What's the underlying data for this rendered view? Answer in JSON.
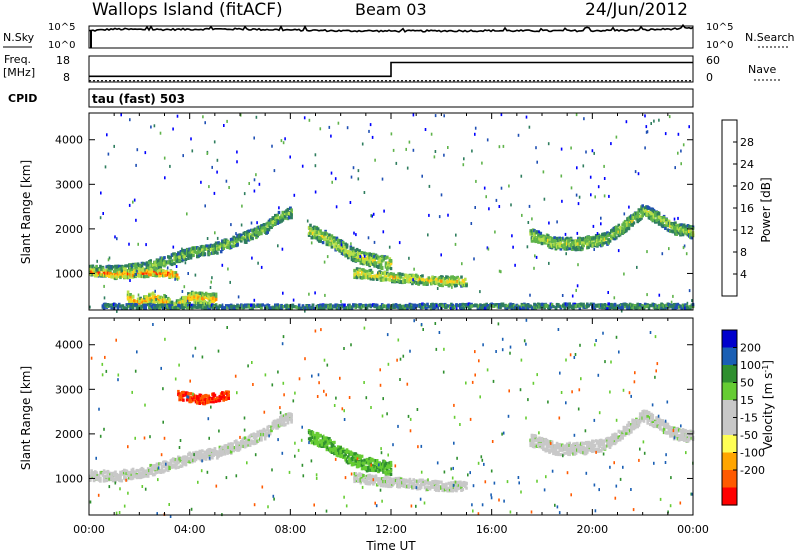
{
  "header": {
    "station": "Wallops Island (fitACF)",
    "beam": "Beam 03",
    "date": "24/Jun/2012"
  },
  "aux_labels": {
    "nsky": "N.Sky",
    "nsearch": "N.Search",
    "freq_line1": "Freq.",
    "freq_line2": "[MHz]",
    "nave": "Nave",
    "cpid": "CPID",
    "cpid_value": "tau (fast) 503",
    "left_ticks_top": [
      "10^5",
      "10^0"
    ],
    "right_ticks_top": [
      "10^5",
      "10^0"
    ],
    "left_ticks_freq": [
      "18",
      "8"
    ],
    "right_ticks_freq": [
      "60",
      "0"
    ]
  },
  "colors": {
    "power_scale": [
      "#0000ff",
      "#1f4fb4",
      "#2e7d5e",
      "#5fb34a",
      "#b7e04a",
      "#ffd21a",
      "#ff8c00",
      "#ff2a00",
      "#e00000"
    ],
    "velocity_scale": [
      "#ff0000",
      "#ff5a00",
      "#ffa500",
      "#ffff55",
      "#c8c8c8",
      "#c8c8c8",
      "#66cc33",
      "#2f8f2f",
      "#1a5fb4",
      "#0000cc"
    ],
    "ground_scatter": "#c8c8c8"
  },
  "chart_data": [
    {
      "type": "line",
      "panel": "N.Sky / N.Search",
      "description_label": "N.Sky",
      "ylim_labels": [
        "10^0",
        "10^5"
      ],
      "x_hours": [
        0,
        0.5,
        1,
        2,
        3,
        4,
        5,
        6,
        7,
        8,
        9,
        10,
        11,
        12,
        13,
        14,
        15,
        16,
        17,
        18,
        19,
        20,
        21,
        22,
        23,
        24
      ],
      "series": [
        {
          "name": "N.Sky",
          "values_level": [
            0.78,
            0.82,
            0.86,
            0.84,
            0.84,
            0.85,
            0.86,
            0.86,
            0.84,
            0.82,
            0.8,
            0.78,
            0.78,
            0.77,
            0.77,
            0.78,
            0.78,
            0.79,
            0.78,
            0.78,
            0.78,
            0.79,
            0.8,
            0.82,
            0.86,
            0.9
          ]
        }
      ]
    },
    {
      "type": "line",
      "panel": "Freq / Nave",
      "series": [
        {
          "name": "Freq.",
          "x_hours": [
            0,
            12,
            12,
            24
          ],
          "values_level": [
            0.22,
            0.22,
            0.75,
            0.75
          ]
        },
        {
          "name": "Nave",
          "x_hours": [
            0,
            24
          ],
          "values_level": [
            0.05,
            0.05
          ]
        }
      ]
    },
    {
      "type": "heatmap",
      "panel": "power",
      "xlabel": "",
      "ylabel": "Slant Range [km]",
      "x_tick_labels": [
        "00:00",
        "04:00",
        "08:00",
        "12:00",
        "16:00",
        "20:00",
        "00:00"
      ],
      "x_range_hours": [
        0,
        24
      ],
      "y_ticks": [
        1000,
        2000,
        3000,
        4000
      ],
      "ylim": [
        180,
        4600
      ],
      "colorbar": {
        "label": "Power [dB]",
        "ticks": [
          "4",
          "8",
          "12",
          "16",
          "20",
          "24",
          "28"
        ]
      },
      "echo_bands": [
        {
          "label": "range-time track 1",
          "x_hours": [
            0,
            1,
            2,
            3,
            4,
            5,
            6,
            7,
            7.5,
            8
          ],
          "range_km": [
            1100,
            1080,
            1150,
            1300,
            1500,
            1600,
            1800,
            2050,
            2300,
            2400
          ],
          "width_km": 180,
          "level": 14
        },
        {
          "label": "range-time track 2",
          "x_hours": [
            0,
            0.5,
            1,
            1.8,
            2.5,
            3,
            3.5
          ],
          "range_km": [
            1060,
            1050,
            1000,
            1030,
            1050,
            1030,
            1000
          ],
          "width_km": 120,
          "level": 26
        },
        {
          "label": "range-time track 3",
          "x_hours": [
            1.5,
            2,
            2.5,
            3,
            3.3,
            4,
            5
          ],
          "range_km": [
            500,
            350,
            500,
            400,
            250,
            500,
            450
          ],
          "width_km": 200,
          "level": 22
        },
        {
          "label": "range-time track 4",
          "x_hours": [
            8.7,
            9.5,
            10.3,
            11,
            11.5,
            12
          ],
          "range_km": [
            2000,
            1800,
            1500,
            1350,
            1300,
            1250
          ],
          "width_km": 220,
          "level": 18
        },
        {
          "label": "range-time track 5",
          "x_hours": [
            10.5,
            11.2,
            12,
            13,
            14,
            15
          ],
          "range_km": [
            1050,
            1000,
            950,
            900,
            860,
            850
          ],
          "width_km": 160,
          "level": 20
        },
        {
          "label": "range-time track 6",
          "x_hours": [
            17.5,
            18.5,
            19.5,
            20.5,
            21.5,
            22,
            22.5,
            23.2,
            24
          ],
          "range_km": [
            1900,
            1700,
            1700,
            1800,
            2200,
            2450,
            2300,
            2050,
            1950
          ],
          "width_km": 200,
          "level": 16
        },
        {
          "label": "range-time track 7",
          "x_hours": [
            0.5,
            2,
            4,
            6,
            8,
            10,
            12,
            14,
            16,
            18,
            20,
            22,
            24
          ],
          "range_km": [
            300,
            290,
            280,
            280,
            280,
            280,
            290,
            300,
            300,
            300,
            300,
            300,
            300
          ],
          "width_km": 80,
          "level": 10
        }
      ]
    },
    {
      "type": "heatmap",
      "panel": "velocity",
      "xlabel": "Time UT",
      "ylabel": "Slant Range [km]",
      "x_tick_labels": [
        "00:00",
        "04:00",
        "08:00",
        "12:00",
        "16:00",
        "20:00",
        "00:00"
      ],
      "x_range_hours": [
        0,
        24
      ],
      "y_ticks": [
        1000,
        2000,
        3000,
        4000
      ],
      "ylim": [
        180,
        4600
      ],
      "colorbar": {
        "label": "Velocity [m s^-1]",
        "ticks": [
          "200",
          "100",
          "50",
          "15",
          "-15",
          "-50",
          "-100",
          "-200"
        ]
      },
      "echo_bands": [
        {
          "label": "velocity track 1",
          "x_hours": [
            0,
            1,
            2,
            3,
            4,
            5,
            6,
            7,
            7.5,
            8
          ],
          "range_km": [
            1100,
            1080,
            1150,
            1300,
            1500,
            1600,
            1800,
            2050,
            2300,
            2400
          ],
          "width_km": 180,
          "velocity": 0
        },
        {
          "label": "velocity track 2",
          "x_hours": [
            3.5,
            4.5,
            5.5
          ],
          "range_km": [
            2900,
            2800,
            2900
          ],
          "width_km": 150,
          "velocity": -150
        },
        {
          "label": "velocity track 3",
          "x_hours": [
            8.7,
            9.5,
            10.3,
            11,
            11.5,
            12
          ],
          "range_km": [
            2000,
            1800,
            1500,
            1350,
            1300,
            1250
          ],
          "width_km": 220,
          "velocity": 60
        },
        {
          "label": "velocity track 4",
          "x_hours": [
            10.5,
            11.2,
            12,
            13,
            14,
            15
          ],
          "range_km": [
            1050,
            1000,
            950,
            900,
            860,
            850
          ],
          "width_km": 160,
          "velocity": 0
        },
        {
          "label": "velocity track 5",
          "x_hours": [
            17.5,
            18.5,
            19.5,
            20.5,
            21.5,
            22,
            22.5,
            23.2,
            24
          ],
          "range_km": [
            1900,
            1700,
            1700,
            1800,
            2200,
            2450,
            2300,
            2050,
            1950
          ],
          "width_km": 200,
          "velocity": 0
        }
      ]
    }
  ]
}
